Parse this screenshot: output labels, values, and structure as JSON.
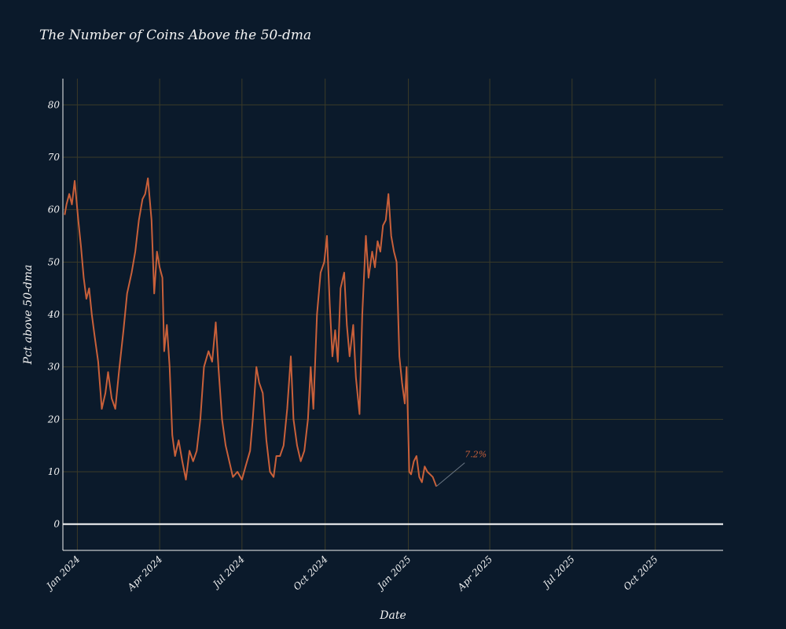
{
  "colors": {
    "background": "#0b1a2b",
    "grid": "#3b3a28",
    "series": "#c9603a",
    "text": "#f2f2f2",
    "zero_line": "#ffffff"
  },
  "chart_data": {
    "type": "line",
    "title": "The Number of Coins Above the 50-dma",
    "xlabel": "Date",
    "ylabel": "Pct above 50-dma",
    "grid": true,
    "ylim": [
      -5,
      85
    ],
    "xlim": [
      "2023-12-16",
      "2025-12-15"
    ],
    "y_ticks": [
      0,
      10,
      20,
      30,
      40,
      50,
      60,
      70,
      80
    ],
    "x_ticks": [
      {
        "date": "2024-01-01",
        "label": "Jan 2024"
      },
      {
        "date": "2024-04-01",
        "label": "Apr 2024"
      },
      {
        "date": "2024-07-01",
        "label": "Jul 2024"
      },
      {
        "date": "2024-10-01",
        "label": "Oct 2024"
      },
      {
        "date": "2025-01-01",
        "label": "Jan 2025"
      },
      {
        "date": "2025-04-01",
        "label": "Apr 2025"
      },
      {
        "date": "2025-07-01",
        "label": "Jul 2025"
      },
      {
        "date": "2025-10-01",
        "label": "Oct 2025"
      }
    ],
    "annotation": {
      "text": "7.2%",
      "date": "2025-02-01",
      "value": 7.2
    },
    "series": [
      {
        "points": [
          [
            "2023-12-18",
            59
          ],
          [
            "2023-12-20",
            61
          ],
          [
            "2023-12-23",
            63
          ],
          [
            "2023-12-26",
            61
          ],
          [
            "2023-12-29",
            65.5
          ],
          [
            "2024-01-02",
            58
          ],
          [
            "2024-01-05",
            53
          ],
          [
            "2024-01-08",
            47
          ],
          [
            "2024-01-11",
            43
          ],
          [
            "2024-01-14",
            45
          ],
          [
            "2024-01-17",
            40
          ],
          [
            "2024-01-20",
            36
          ],
          [
            "2024-01-24",
            31
          ],
          [
            "2024-01-28",
            22
          ],
          [
            "2024-02-01",
            25
          ],
          [
            "2024-02-04",
            29
          ],
          [
            "2024-02-08",
            24
          ],
          [
            "2024-02-12",
            22
          ],
          [
            "2024-02-16",
            29
          ],
          [
            "2024-02-21",
            37
          ],
          [
            "2024-02-25",
            44
          ],
          [
            "2024-03-01",
            48
          ],
          [
            "2024-03-05",
            52
          ],
          [
            "2024-03-09",
            58
          ],
          [
            "2024-03-13",
            62
          ],
          [
            "2024-03-16",
            63
          ],
          [
            "2024-03-19",
            66
          ],
          [
            "2024-03-23",
            58
          ],
          [
            "2024-03-26",
            44
          ],
          [
            "2024-03-29",
            52
          ],
          [
            "2024-04-01",
            49
          ],
          [
            "2024-04-04",
            47
          ],
          [
            "2024-04-06",
            33
          ],
          [
            "2024-04-09",
            38
          ],
          [
            "2024-04-12",
            30
          ],
          [
            "2024-04-15",
            17
          ],
          [
            "2024-04-18",
            13
          ],
          [
            "2024-04-22",
            16
          ],
          [
            "2024-04-26",
            12
          ],
          [
            "2024-04-30",
            8.5
          ],
          [
            "2024-05-04",
            14
          ],
          [
            "2024-05-08",
            12
          ],
          [
            "2024-05-12",
            14
          ],
          [
            "2024-05-16",
            20
          ],
          [
            "2024-05-20",
            30
          ],
          [
            "2024-05-25",
            33
          ],
          [
            "2024-05-29",
            31
          ],
          [
            "2024-06-02",
            38.5
          ],
          [
            "2024-06-05",
            30
          ],
          [
            "2024-06-09",
            20
          ],
          [
            "2024-06-13",
            15
          ],
          [
            "2024-06-17",
            12
          ],
          [
            "2024-06-21",
            9
          ],
          [
            "2024-06-26",
            10
          ],
          [
            "2024-07-01",
            8.5
          ],
          [
            "2024-07-05",
            11
          ],
          [
            "2024-07-10",
            14
          ],
          [
            "2024-07-13",
            20
          ],
          [
            "2024-07-17",
            30
          ],
          [
            "2024-07-20",
            27
          ],
          [
            "2024-07-24",
            25
          ],
          [
            "2024-07-28",
            16
          ],
          [
            "2024-08-01",
            10
          ],
          [
            "2024-08-05",
            9
          ],
          [
            "2024-08-08",
            13
          ],
          [
            "2024-08-12",
            13
          ],
          [
            "2024-08-16",
            15
          ],
          [
            "2024-08-20",
            22
          ],
          [
            "2024-08-24",
            32
          ],
          [
            "2024-08-27",
            20
          ],
          [
            "2024-08-31",
            15
          ],
          [
            "2024-09-04",
            12
          ],
          [
            "2024-09-08",
            14
          ],
          [
            "2024-09-12",
            20
          ],
          [
            "2024-09-15",
            30
          ],
          [
            "2024-09-18",
            22
          ],
          [
            "2024-09-22",
            40
          ],
          [
            "2024-09-26",
            48
          ],
          [
            "2024-09-30",
            50
          ],
          [
            "2024-10-03",
            55
          ],
          [
            "2024-10-06",
            42
          ],
          [
            "2024-10-09",
            32
          ],
          [
            "2024-10-12",
            37
          ],
          [
            "2024-10-15",
            31
          ],
          [
            "2024-10-18",
            45
          ],
          [
            "2024-10-22",
            48
          ],
          [
            "2024-10-25",
            38
          ],
          [
            "2024-10-28",
            32
          ],
          [
            "2024-11-01",
            38
          ],
          [
            "2024-11-04",
            28
          ],
          [
            "2024-11-08",
            21
          ],
          [
            "2024-11-11",
            40
          ],
          [
            "2024-11-15",
            55
          ],
          [
            "2024-11-18",
            47
          ],
          [
            "2024-11-22",
            52
          ],
          [
            "2024-11-25",
            49
          ],
          [
            "2024-11-28",
            54
          ],
          [
            "2024-12-01",
            52
          ],
          [
            "2024-12-04",
            57
          ],
          [
            "2024-12-07",
            58
          ],
          [
            "2024-12-10",
            63
          ],
          [
            "2024-12-13",
            55
          ],
          [
            "2024-12-16",
            52
          ],
          [
            "2024-12-19",
            50
          ],
          [
            "2024-12-22",
            32
          ],
          [
            "2024-12-25",
            27
          ],
          [
            "2024-12-28",
            23
          ],
          [
            "2024-12-30",
            30
          ],
          [
            "2025-01-02",
            10
          ],
          [
            "2025-01-04",
            9.5
          ],
          [
            "2025-01-07",
            12
          ],
          [
            "2025-01-10",
            13
          ],
          [
            "2025-01-13",
            9
          ],
          [
            "2025-01-16",
            8
          ],
          [
            "2025-01-19",
            11
          ],
          [
            "2025-01-22",
            10
          ],
          [
            "2025-01-25",
            9.5
          ],
          [
            "2025-01-28",
            9
          ],
          [
            "2025-02-01",
            7.2
          ]
        ]
      }
    ]
  }
}
